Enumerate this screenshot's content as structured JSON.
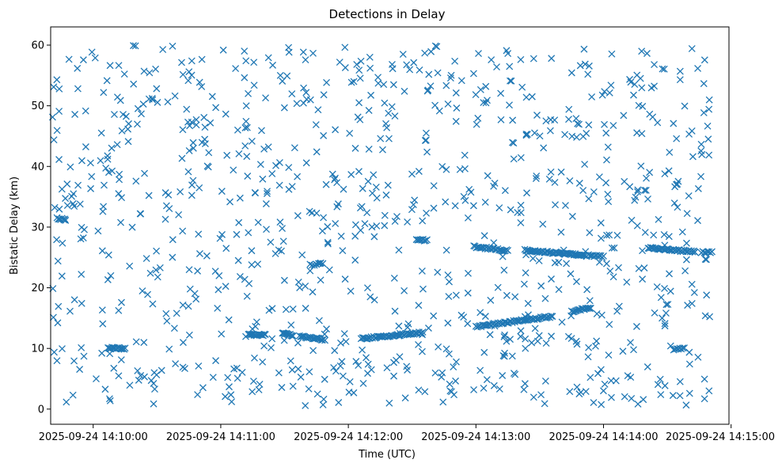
{
  "chart_data": {
    "type": "scatter",
    "title": "Detections in Delay",
    "xlabel": "Time (UTC)",
    "ylabel": "Bistatic Delay (km)",
    "xlim_seconds_after_14_09_40": [
      0,
      319
    ],
    "ylim": [
      -2.5,
      63
    ],
    "marker": "x",
    "color": "#1f77b4",
    "x_ticks": [
      {
        "label": "2025-09-24 14:10:00",
        "value_s": 20
      },
      {
        "label": "2025-09-24 14:11:00",
        "value_s": 80
      },
      {
        "label": "2025-09-24 14:12:00",
        "value_s": 140
      },
      {
        "label": "2025-09-24 14:13:00",
        "value_s": 200
      },
      {
        "label": "2025-09-24 14:14:00",
        "value_s": 260
      },
      {
        "label": "2025-09-24 14:15:00",
        "value_s": 320
      }
    ],
    "y_ticks": [
      0,
      10,
      20,
      30,
      40,
      50,
      60
    ],
    "track_segments": [
      {
        "t_start_s": 27,
        "t_end_s": 35,
        "delay_start_km": 10.1,
        "delay_end_km": 10.0,
        "count": 18
      },
      {
        "t_start_s": 93,
        "t_end_s": 101,
        "delay_start_km": 12.3,
        "delay_end_km": 12.2,
        "count": 16
      },
      {
        "t_start_s": 109,
        "t_end_s": 114,
        "delay_start_km": 12.6,
        "delay_end_km": 12.1,
        "count": 12
      },
      {
        "t_start_s": 117,
        "t_end_s": 129,
        "delay_start_km": 12.0,
        "delay_end_km": 11.4,
        "count": 22
      },
      {
        "t_start_s": 146,
        "t_end_s": 175,
        "delay_start_km": 11.6,
        "delay_end_km": 12.6,
        "count": 50
      },
      {
        "t_start_s": 200,
        "t_end_s": 236,
        "delay_start_km": 13.6,
        "delay_end_km": 15.3,
        "count": 60
      },
      {
        "t_start_s": 245,
        "t_end_s": 254,
        "delay_start_km": 16.1,
        "delay_end_km": 16.7,
        "count": 16
      },
      {
        "t_start_s": 199,
        "t_end_s": 215,
        "delay_start_km": 26.8,
        "delay_end_km": 26.1,
        "count": 28
      },
      {
        "t_start_s": 223,
        "t_end_s": 252,
        "delay_start_km": 26.2,
        "delay_end_km": 25.3,
        "count": 55
      },
      {
        "t_start_s": 253,
        "t_end_s": 260,
        "delay_start_km": 25.4,
        "delay_end_km": 25.1,
        "count": 12
      },
      {
        "t_start_s": 281,
        "t_end_s": 303,
        "delay_start_km": 26.6,
        "delay_end_km": 25.9,
        "count": 40
      },
      {
        "t_start_s": 306,
        "t_end_s": 311,
        "delay_start_km": 25.9,
        "delay_end_km": 25.8,
        "count": 8
      },
      {
        "t_start_s": 172,
        "t_end_s": 177,
        "delay_start_km": 27.9,
        "delay_end_km": 27.8,
        "count": 9
      },
      {
        "t_start_s": 3,
        "t_end_s": 7,
        "delay_start_km": 31.5,
        "delay_end_km": 31.2,
        "count": 8
      },
      {
        "t_start_s": 122,
        "t_end_s": 128,
        "delay_start_km": 23.8,
        "delay_end_km": 24.0,
        "count": 7
      },
      {
        "t_start_s": 293,
        "t_end_s": 298,
        "delay_start_km": 9.9,
        "delay_end_km": 10.0,
        "count": 8
      }
    ],
    "background_noise": {
      "description_count": 950,
      "t_range_s": [
        0,
        310
      ],
      "delay_range_km": [
        0.5,
        60
      ]
    }
  }
}
